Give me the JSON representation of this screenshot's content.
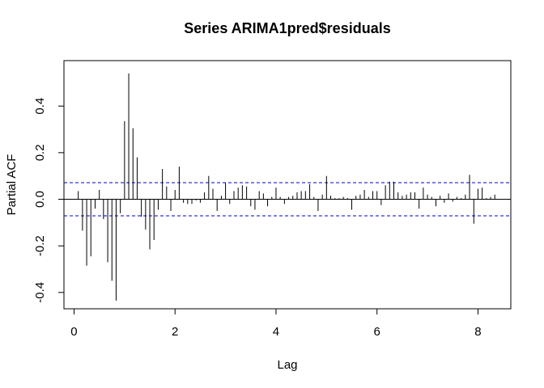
{
  "chart_data": {
    "type": "bar",
    "title": "Series  ARIMA1pred$residuals",
    "xlabel": "Lag",
    "ylabel": "Partial ACF",
    "xlim": [
      -0.2,
      8.65
    ],
    "ylim": [
      -0.47,
      0.595
    ],
    "x_ticks": [
      0,
      2,
      4,
      6,
      8
    ],
    "y_ticks": [
      -0.4,
      -0.2,
      0.0,
      0.2,
      0.4
    ],
    "x_tick_labels": [
      "0",
      "2",
      "4",
      "6",
      "8"
    ],
    "y_tick_labels": [
      "-0.4",
      "-0.2",
      "0.0",
      "0.2",
      "0.4"
    ],
    "confidence_limit": 0.071,
    "ci_color": "#0000cc",
    "bar_color": "#000000",
    "grid": false,
    "x": [
      0.083,
      0.167,
      0.25,
      0.333,
      0.417,
      0.5,
      0.583,
      0.667,
      0.75,
      0.833,
      0.917,
      1.0,
      1.083,
      1.167,
      1.25,
      1.333,
      1.417,
      1.5,
      1.583,
      1.667,
      1.75,
      1.833,
      1.917,
      2.0,
      2.083,
      2.167,
      2.25,
      2.333,
      2.417,
      2.5,
      2.583,
      2.667,
      2.75,
      2.833,
      2.917,
      3.0,
      3.083,
      3.167,
      3.25,
      3.333,
      3.417,
      3.5,
      3.583,
      3.667,
      3.75,
      3.833,
      3.917,
      4.0,
      4.083,
      4.167,
      4.25,
      4.333,
      4.417,
      4.5,
      4.583,
      4.667,
      4.75,
      4.833,
      4.917,
      5.0,
      5.083,
      5.167,
      5.25,
      5.333,
      5.417,
      5.5,
      5.583,
      5.667,
      5.75,
      5.833,
      5.917,
      6.0,
      6.083,
      6.167,
      6.25,
      6.333,
      6.417,
      6.5,
      6.583,
      6.667,
      6.75,
      6.833,
      6.917,
      7.0,
      7.083,
      7.167,
      7.25,
      7.333,
      7.417,
      7.5,
      7.583,
      7.667,
      7.75,
      7.833,
      7.917,
      8.0,
      8.083,
      8.167,
      8.25,
      8.333
    ],
    "values": [
      0.035,
      -0.135,
      -0.285,
      -0.245,
      -0.04,
      0.04,
      -0.085,
      -0.27,
      -0.35,
      -0.435,
      -0.06,
      0.335,
      0.54,
      0.305,
      0.18,
      -0.075,
      -0.13,
      -0.215,
      -0.175,
      -0.045,
      0.13,
      0.055,
      -0.05,
      0.04,
      0.14,
      -0.015,
      -0.02,
      -0.02,
      -0.005,
      -0.015,
      0.03,
      0.1,
      0.045,
      -0.05,
      0.015,
      0.07,
      -0.02,
      0.035,
      0.05,
      0.06,
      0.055,
      -0.03,
      -0.045,
      0.035,
      0.025,
      -0.03,
      0.01,
      0.05,
      0.01,
      -0.02,
      0.01,
      0.015,
      0.03,
      0.035,
      0.035,
      0.065,
      0.01,
      -0.05,
      0.02,
      0.1,
      0.015,
      0.005,
      0.005,
      0.01,
      0.005,
      -0.045,
      0.015,
      0.02,
      0.04,
      0.01,
      0.035,
      0.035,
      -0.025,
      0.06,
      0.075,
      0.075,
      0.03,
      0.015,
      0.02,
      0.03,
      0.03,
      -0.04,
      0.05,
      0.02,
      0.01,
      -0.03,
      0.015,
      -0.015,
      0.025,
      -0.01,
      0.01,
      0.005,
      0.02,
      0.105,
      -0.105,
      0.045,
      0.05,
      0.005,
      0.01,
      0.02
    ]
  }
}
